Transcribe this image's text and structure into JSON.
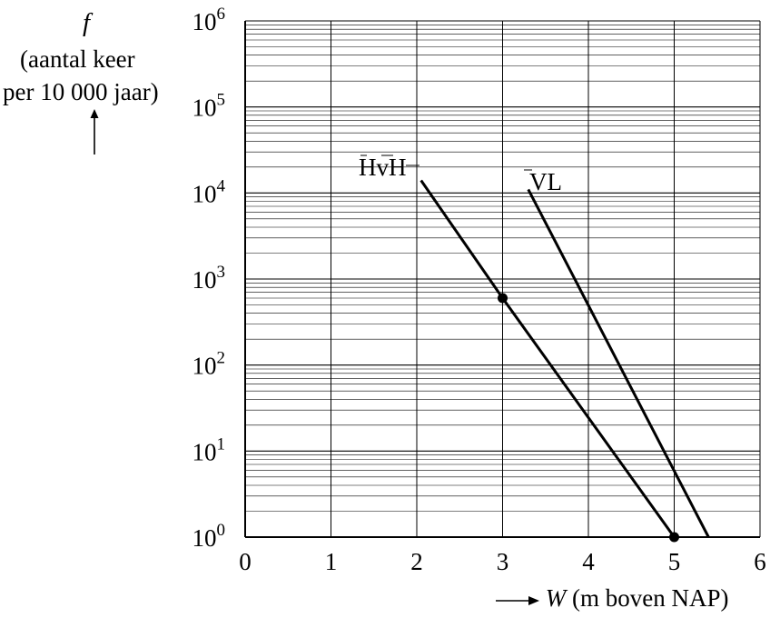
{
  "y_axis": {
    "symbol": "f",
    "line1": "(aantal keer",
    "line2": "per 10 000 jaar)"
  },
  "x_axis": {
    "symbol": "W",
    "unit": "(m boven NAP)"
  },
  "chart_data": {
    "type": "line",
    "title": "",
    "xlabel": "W (m boven NAP)",
    "ylabel": "f (aantal keer per 10 000 jaar)",
    "xlim": [
      0,
      6
    ],
    "ylim": [
      1,
      1000000
    ],
    "yscale": "log",
    "grid": true,
    "x_ticks": [
      "0",
      "1",
      "2",
      "3",
      "4",
      "5",
      "6"
    ],
    "y_ticks": [
      {
        "base": "10",
        "exp": "0"
      },
      {
        "base": "10",
        "exp": "1"
      },
      {
        "base": "10",
        "exp": "2"
      },
      {
        "base": "10",
        "exp": "3"
      },
      {
        "base": "10",
        "exp": "4"
      },
      {
        "base": "10",
        "exp": "5"
      },
      {
        "base": "10",
        "exp": "6"
      }
    ],
    "series": [
      {
        "name": "HvH",
        "points": [
          {
            "x": 2.05,
            "y": 14000
          },
          {
            "x": 3.0,
            "y": 600
          },
          {
            "x": 5.0,
            "y": 1
          }
        ],
        "markers": [
          {
            "x": 3.0,
            "y": 600
          },
          {
            "x": 5.0,
            "y": 1
          }
        ]
      },
      {
        "name": "VL",
        "points": [
          {
            "x": 3.3,
            "y": 11000
          },
          {
            "x": 5.4,
            "y": 1
          }
        ],
        "markers": []
      }
    ]
  }
}
